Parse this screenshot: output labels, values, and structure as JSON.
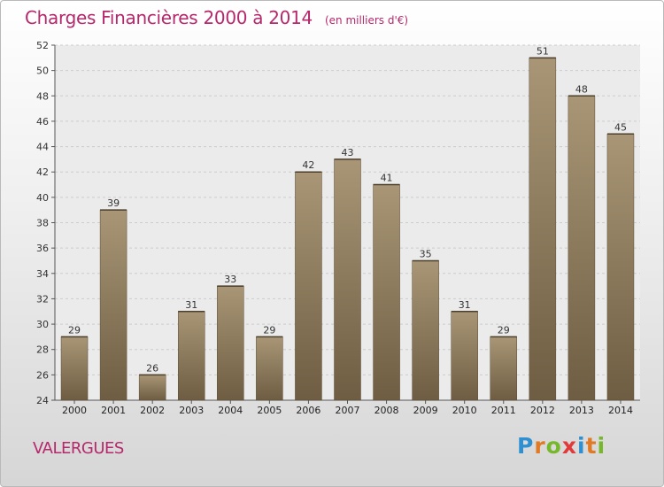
{
  "title": "Charges Financières 2000 à 2014",
  "unit_note": "(en milliers d'€)",
  "commune": "VALERGUES",
  "logo": {
    "text": "Proxiti",
    "letter_colors": [
      "#2e8fd1",
      "#e07a24",
      "#76b82a",
      "#e03a3a",
      "#2e8fd1",
      "#e07a24",
      "#76b82a"
    ]
  },
  "colors": {
    "title": "#b5286b",
    "bar_top": "#a89676",
    "bar_bottom": "#6e5d42",
    "grid": "#cccccc"
  },
  "chart_data": {
    "type": "bar",
    "categories": [
      "2000",
      "2001",
      "2002",
      "2003",
      "2004",
      "2005",
      "2006",
      "2007",
      "2008",
      "2009",
      "2010",
      "2011",
      "2012",
      "2013",
      "2014"
    ],
    "values": [
      29,
      39,
      26,
      31,
      33,
      29,
      42,
      43,
      41,
      35,
      31,
      29,
      51,
      48,
      45
    ],
    "title": "Charges Financières 2000 à 2014",
    "subtitle": "(en milliers d'€)",
    "ylim": [
      24,
      52
    ],
    "yticks": [
      24,
      26,
      28,
      30,
      32,
      34,
      36,
      38,
      40,
      42,
      44,
      46,
      48,
      50,
      52
    ],
    "grid": true,
    "data_labels": true
  }
}
